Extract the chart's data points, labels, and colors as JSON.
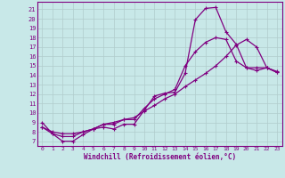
{
  "xlabel": "Windchill (Refroidissement éolien,°C)",
  "bg_color": "#c8e8e8",
  "grid_color": "#b0cccc",
  "line_color": "#800080",
  "spine_color": "#800080",
  "xlim": [
    -0.5,
    23.5
  ],
  "ylim": [
    6.5,
    21.8
  ],
  "yticks": [
    7,
    8,
    9,
    10,
    11,
    12,
    13,
    14,
    15,
    16,
    17,
    18,
    19,
    20,
    21
  ],
  "xticks": [
    0,
    1,
    2,
    3,
    4,
    5,
    6,
    7,
    8,
    9,
    10,
    11,
    12,
    13,
    14,
    15,
    16,
    17,
    18,
    19,
    20,
    21,
    22,
    23
  ],
  "curve1_x": [
    0,
    1,
    2,
    3,
    4,
    5,
    6,
    7,
    8,
    9,
    10,
    11,
    12,
    13,
    14,
    15,
    16,
    17,
    18,
    19,
    20,
    21,
    22,
    23
  ],
  "curve1_y": [
    9.0,
    7.8,
    7.0,
    7.0,
    7.7,
    8.3,
    8.5,
    8.3,
    8.8,
    8.8,
    10.3,
    11.8,
    12.1,
    12.2,
    14.2,
    19.9,
    21.1,
    21.2,
    18.6,
    17.3,
    14.8,
    14.8,
    14.8,
    14.4
  ],
  "curve2_x": [
    0,
    1,
    2,
    3,
    4,
    5,
    6,
    7,
    8,
    9,
    10,
    11,
    12,
    13,
    14,
    15,
    16,
    17,
    18,
    19,
    20,
    21,
    22,
    23
  ],
  "curve2_y": [
    8.5,
    7.8,
    7.5,
    7.5,
    8.0,
    8.3,
    8.8,
    8.8,
    9.3,
    9.3,
    10.5,
    11.5,
    12.0,
    12.5,
    15.0,
    16.5,
    17.5,
    18.0,
    17.8,
    15.5,
    14.8,
    14.5,
    14.8,
    14.3
  ],
  "curve3_x": [
    0,
    1,
    2,
    3,
    4,
    5,
    6,
    7,
    8,
    9,
    10,
    11,
    12,
    13,
    14,
    15,
    16,
    17,
    18,
    19,
    20,
    21,
    22,
    23
  ],
  "curve3_y": [
    8.5,
    8.0,
    7.8,
    7.8,
    8.0,
    8.3,
    8.8,
    9.0,
    9.3,
    9.5,
    10.2,
    10.8,
    11.5,
    12.0,
    12.8,
    13.5,
    14.2,
    15.0,
    16.0,
    17.2,
    17.8,
    17.0,
    14.8,
    14.3
  ]
}
